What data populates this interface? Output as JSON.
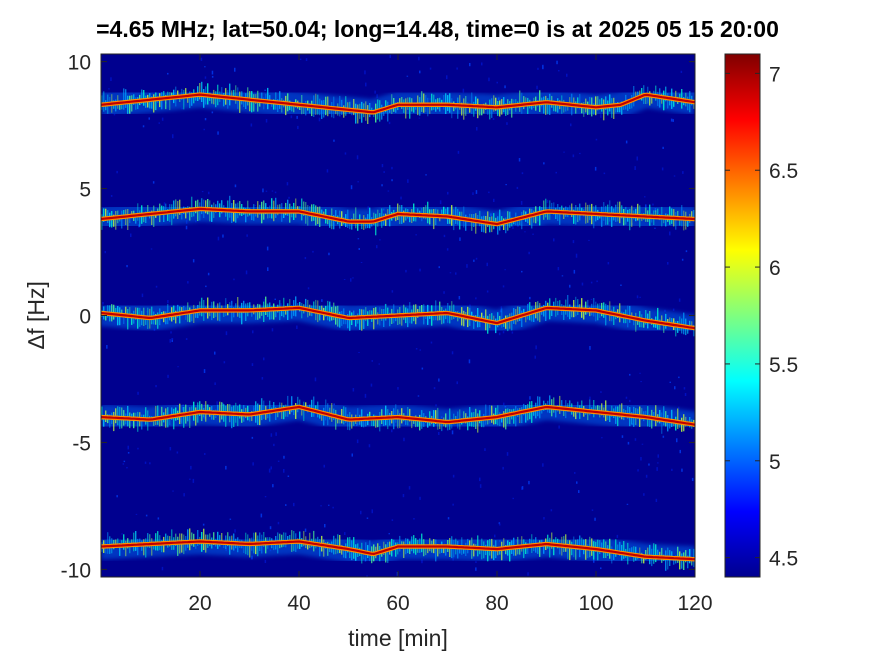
{
  "chart_data": {
    "type": "heatmap",
    "title": "=4.65 MHz;  lat=50.04; long=14.48, time=0 is at 2025 05 15 20:00",
    "xlabel": "time [min]",
    "ylabel": "∆f [Hz]",
    "xlim": [
      0,
      120
    ],
    "ylim": [
      -10.3,
      10.3
    ],
    "xticks": [
      20,
      40,
      60,
      80,
      100,
      120
    ],
    "yticks": [
      10,
      5,
      0,
      -5,
      -10
    ],
    "colorbar": {
      "colormap": "jet",
      "clim": [
        4.4,
        7.1
      ],
      "ticks": [
        7,
        6.5,
        6,
        5.5,
        5,
        4.5
      ]
    },
    "series": [
      {
        "x": [
          0,
          10,
          20,
          30,
          40,
          50,
          55,
          60,
          70,
          80,
          90,
          100,
          105,
          110,
          120
        ],
        "y": [
          8.3,
          8.5,
          8.7,
          8.5,
          8.3,
          8.1,
          8.0,
          8.3,
          8.3,
          8.2,
          8.4,
          8.2,
          8.3,
          8.7,
          8.4
        ]
      },
      {
        "x": [
          0,
          10,
          20,
          30,
          40,
          50,
          55,
          60,
          70,
          80,
          90,
          100,
          110,
          120
        ],
        "y": [
          3.8,
          4.0,
          4.2,
          4.1,
          4.1,
          3.7,
          3.7,
          4.0,
          3.9,
          3.6,
          4.1,
          4.0,
          3.9,
          3.8
        ]
      },
      {
        "x": [
          0,
          10,
          20,
          30,
          40,
          50,
          60,
          70,
          80,
          90,
          100,
          110,
          120
        ],
        "y": [
          0.1,
          -0.1,
          0.2,
          0.2,
          0.3,
          -0.1,
          0.0,
          0.1,
          -0.3,
          0.3,
          0.2,
          -0.2,
          -0.5
        ]
      },
      {
        "x": [
          0,
          10,
          20,
          30,
          40,
          50,
          60,
          70,
          80,
          90,
          100,
          110,
          120
        ],
        "y": [
          -4.0,
          -4.1,
          -3.8,
          -3.9,
          -3.6,
          -4.1,
          -4.0,
          -4.2,
          -4.0,
          -3.6,
          -3.8,
          -4.0,
          -4.3
        ]
      },
      {
        "x": [
          0,
          10,
          20,
          30,
          40,
          50,
          55,
          60,
          70,
          80,
          90,
          100,
          110,
          120
        ],
        "y": [
          -9.1,
          -9.0,
          -8.9,
          -9.0,
          -8.9,
          -9.2,
          -9.4,
          -9.1,
          -9.1,
          -9.2,
          -9.0,
          -9.2,
          -9.5,
          -9.6
        ]
      }
    ]
  }
}
